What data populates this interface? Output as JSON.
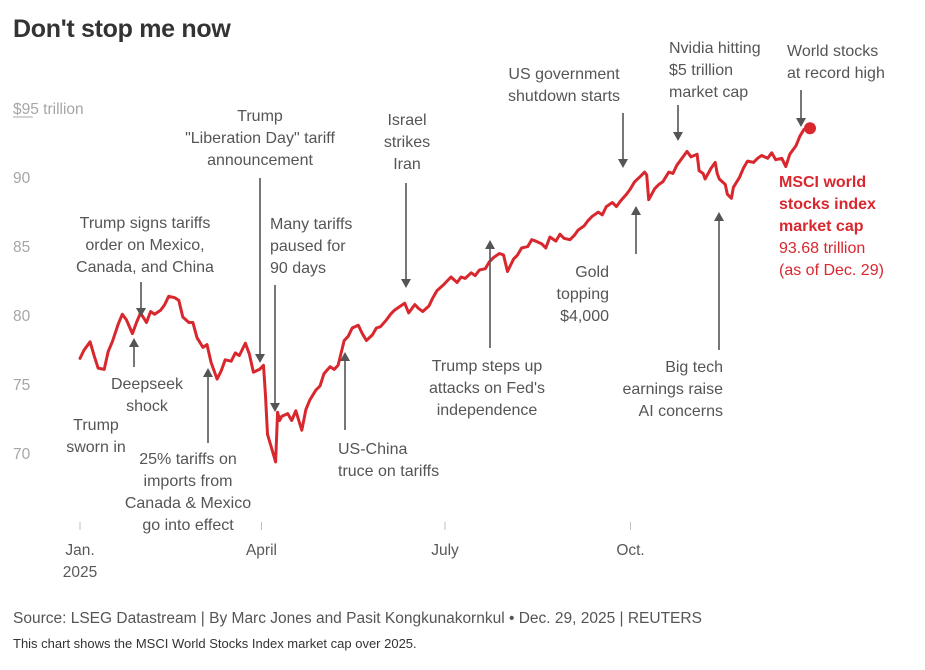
{
  "title": "Don't stop me now",
  "source": "Source: LSEG Datastream | By Marc Jones and Pasit Kongkunakornkul • Dec. 29, 2025 | REUTERS",
  "description": "This chart shows the MSCI World Stocks Index market cap over 2025.",
  "colors": {
    "line": "#d9272e",
    "text": "#555555",
    "axis": "#a6a6a6",
    "arrow": "#555555"
  },
  "chart_data": {
    "type": "line",
    "title": "Don't stop me now",
    "ylim": [
      69,
      96
    ],
    "yticks": [
      {
        "value": 70,
        "label": "70"
      },
      {
        "value": 75,
        "label": "75"
      },
      {
        "value": 80,
        "label": "80"
      },
      {
        "value": 85,
        "label": "85"
      },
      {
        "value": 90,
        "label": "90"
      },
      {
        "value": 95,
        "label": "$95 trillion"
      }
    ],
    "xlim": [
      "2024-12-31",
      "2025-12-31"
    ],
    "xticks": [
      {
        "date": "2025-01-01",
        "lines": [
          "Jan.",
          "2025"
        ]
      },
      {
        "date": "2025-04-01",
        "lines": [
          "April"
        ]
      },
      {
        "date": "2025-07-01",
        "lines": [
          "July"
        ]
      },
      {
        "date": "2025-10-01",
        "lines": [
          "Oct."
        ]
      }
    ],
    "series": [
      {
        "name": "MSCI world stocks index market cap",
        "unit": "trillion USD",
        "points": [
          [
            "2025-01-01",
            77.0
          ],
          [
            "2025-01-03",
            77.6
          ],
          [
            "2025-01-06",
            78.2
          ],
          [
            "2025-01-08",
            77.2
          ],
          [
            "2025-01-10",
            76.3
          ],
          [
            "2025-01-13",
            76.2
          ],
          [
            "2025-01-15",
            77.5
          ],
          [
            "2025-01-17",
            78.2
          ],
          [
            "2025-01-20",
            79.5
          ],
          [
            "2025-01-22",
            80.2
          ],
          [
            "2025-01-24",
            79.8
          ],
          [
            "2025-01-27",
            78.8
          ],
          [
            "2025-01-29",
            79.6
          ],
          [
            "2025-01-31",
            80.3
          ],
          [
            "2025-02-03",
            79.6
          ],
          [
            "2025-02-05",
            80.4
          ],
          [
            "2025-02-07",
            80.2
          ],
          [
            "2025-02-10",
            80.5
          ],
          [
            "2025-02-12",
            80.9
          ],
          [
            "2025-02-14",
            81.5
          ],
          [
            "2025-02-17",
            81.4
          ],
          [
            "2025-02-19",
            81.2
          ],
          [
            "2025-02-21",
            80.0
          ],
          [
            "2025-02-24",
            79.6
          ],
          [
            "2025-02-26",
            79.6
          ],
          [
            "2025-02-28",
            78.5
          ],
          [
            "2025-03-03",
            77.8
          ],
          [
            "2025-03-05",
            78.0
          ],
          [
            "2025-03-07",
            76.7
          ],
          [
            "2025-03-10",
            75.5
          ],
          [
            "2025-03-12",
            76.1
          ],
          [
            "2025-03-14",
            76.9
          ],
          [
            "2025-03-17",
            76.8
          ],
          [
            "2025-03-19",
            77.4
          ],
          [
            "2025-03-21",
            77.2
          ],
          [
            "2025-03-24",
            78.1
          ],
          [
            "2025-03-26",
            77.3
          ],
          [
            "2025-03-28",
            76.0
          ],
          [
            "2025-03-31",
            76.2
          ],
          [
            "2025-04-02",
            76.5
          ],
          [
            "2025-04-03",
            74.3
          ],
          [
            "2025-04-04",
            71.5
          ],
          [
            "2025-04-07",
            70.0
          ],
          [
            "2025-04-08",
            69.5
          ],
          [
            "2025-04-09",
            73.1
          ],
          [
            "2025-04-10",
            72.5
          ],
          [
            "2025-04-11",
            72.8
          ],
          [
            "2025-04-14",
            73.0
          ],
          [
            "2025-04-16",
            72.5
          ],
          [
            "2025-04-18",
            73.2
          ],
          [
            "2025-04-21",
            71.8
          ],
          [
            "2025-04-23",
            73.3
          ],
          [
            "2025-04-25",
            74.0
          ],
          [
            "2025-04-28",
            74.7
          ],
          [
            "2025-04-30",
            75.0
          ],
          [
            "2025-05-02",
            75.9
          ],
          [
            "2025-05-05",
            76.4
          ],
          [
            "2025-05-07",
            76.2
          ],
          [
            "2025-05-09",
            76.5
          ],
          [
            "2025-05-12",
            78.3
          ],
          [
            "2025-05-14",
            78.6
          ],
          [
            "2025-05-16",
            79.2
          ],
          [
            "2025-05-19",
            79.4
          ],
          [
            "2025-05-21",
            78.8
          ],
          [
            "2025-05-23",
            78.3
          ],
          [
            "2025-05-26",
            78.7
          ],
          [
            "2025-05-28",
            79.2
          ],
          [
            "2025-05-30",
            79.3
          ],
          [
            "2025-06-02",
            79.8
          ],
          [
            "2025-06-04",
            80.2
          ],
          [
            "2025-06-06",
            80.5
          ],
          [
            "2025-06-09",
            80.8
          ],
          [
            "2025-06-11",
            81.0
          ],
          [
            "2025-06-13",
            80.3
          ],
          [
            "2025-06-16",
            80.9
          ],
          [
            "2025-06-18",
            80.6
          ],
          [
            "2025-06-20",
            80.4
          ],
          [
            "2025-06-23",
            80.8
          ],
          [
            "2025-06-25",
            81.4
          ],
          [
            "2025-06-27",
            81.9
          ],
          [
            "2025-06-30",
            82.3
          ],
          [
            "2025-07-02",
            82.6
          ],
          [
            "2025-07-04",
            82.9
          ],
          [
            "2025-07-07",
            82.5
          ],
          [
            "2025-07-09",
            82.9
          ],
          [
            "2025-07-11",
            82.8
          ],
          [
            "2025-07-14",
            83.2
          ],
          [
            "2025-07-16",
            83.0
          ],
          [
            "2025-07-18",
            83.4
          ],
          [
            "2025-07-21",
            83.5
          ],
          [
            "2025-07-23",
            84.0
          ],
          [
            "2025-07-25",
            84.3
          ],
          [
            "2025-07-28",
            84.6
          ],
          [
            "2025-07-30",
            84.5
          ],
          [
            "2025-08-01",
            83.3
          ],
          [
            "2025-08-04",
            84.2
          ],
          [
            "2025-08-06",
            84.5
          ],
          [
            "2025-08-08",
            85.0
          ],
          [
            "2025-08-11",
            85.1
          ],
          [
            "2025-08-13",
            85.6
          ],
          [
            "2025-08-15",
            85.5
          ],
          [
            "2025-08-18",
            85.3
          ],
          [
            "2025-08-20",
            85.0
          ],
          [
            "2025-08-22",
            85.8
          ],
          [
            "2025-08-25",
            85.5
          ],
          [
            "2025-08-27",
            86.0
          ],
          [
            "2025-08-29",
            85.7
          ],
          [
            "2025-09-01",
            85.6
          ],
          [
            "2025-09-03",
            85.9
          ],
          [
            "2025-09-05",
            86.3
          ],
          [
            "2025-09-08",
            86.6
          ],
          [
            "2025-09-10",
            87.0
          ],
          [
            "2025-09-12",
            87.3
          ],
          [
            "2025-09-15",
            87.6
          ],
          [
            "2025-09-17",
            87.4
          ],
          [
            "2025-09-19",
            88.0
          ],
          [
            "2025-09-22",
            88.3
          ],
          [
            "2025-09-24",
            88.0
          ],
          [
            "2025-09-26",
            88.4
          ],
          [
            "2025-09-29",
            88.9
          ],
          [
            "2025-10-01",
            89.3
          ],
          [
            "2025-10-03",
            89.8
          ],
          [
            "2025-10-06",
            90.2
          ],
          [
            "2025-10-08",
            90.5
          ],
          [
            "2025-10-09",
            90.3
          ],
          [
            "2025-10-10",
            88.5
          ],
          [
            "2025-10-13",
            89.3
          ],
          [
            "2025-10-15",
            89.6
          ],
          [
            "2025-10-17",
            89.8
          ],
          [
            "2025-10-20",
            90.5
          ],
          [
            "2025-10-22",
            90.4
          ],
          [
            "2025-10-24",
            91.0
          ],
          [
            "2025-10-27",
            91.6
          ],
          [
            "2025-10-29",
            92.0
          ],
          [
            "2025-10-31",
            91.6
          ],
          [
            "2025-11-03",
            91.8
          ],
          [
            "2025-11-04",
            90.6
          ],
          [
            "2025-11-06",
            90.4
          ],
          [
            "2025-11-07",
            90.0
          ],
          [
            "2025-11-10",
            90.8
          ],
          [
            "2025-11-12",
            91.2
          ],
          [
            "2025-11-13",
            90.4
          ],
          [
            "2025-11-14",
            90.0
          ],
          [
            "2025-11-17",
            89.6
          ],
          [
            "2025-11-18",
            88.9
          ],
          [
            "2025-11-20",
            88.6
          ],
          [
            "2025-11-21",
            89.4
          ],
          [
            "2025-11-24",
            90.1
          ],
          [
            "2025-11-26",
            90.8
          ],
          [
            "2025-11-28",
            91.3
          ],
          [
            "2025-12-01",
            91.2
          ],
          [
            "2025-12-03",
            91.5
          ],
          [
            "2025-12-05",
            91.7
          ],
          [
            "2025-12-08",
            91.5
          ],
          [
            "2025-12-10",
            91.9
          ],
          [
            "2025-12-12",
            91.4
          ],
          [
            "2025-12-15",
            91.5
          ],
          [
            "2025-12-17",
            90.9
          ],
          [
            "2025-12-19",
            91.8
          ],
          [
            "2025-12-22",
            92.4
          ],
          [
            "2025-12-24",
            93.1
          ],
          [
            "2025-12-26",
            93.6
          ],
          [
            "2025-12-29",
            93.68
          ]
        ]
      }
    ],
    "end_label": {
      "lines_bold": [
        "MSCI world",
        "stocks index",
        "market cap"
      ],
      "lines": [
        "93.68 trillion",
        "(as of Dec. 29)"
      ]
    },
    "annotations": [
      {
        "id": "trump-sworn-in",
        "date": "2025-01-20",
        "lines": [
          "Trump",
          "sworn in"
        ],
        "arrow": false
      },
      {
        "id": "tariffs-order",
        "date": "2025-02-01",
        "lines": [
          "Trump signs tariffs",
          "order on Mexico,",
          "Canada, and China"
        ],
        "arrow": "down"
      },
      {
        "id": "deepseek-shock",
        "date": "2025-01-27",
        "lines": [
          "Deepseek",
          "shock"
        ],
        "arrow": "up"
      },
      {
        "id": "tariffs-25",
        "date": "2025-03-04",
        "lines": [
          "25% tariffs on",
          "imports from",
          "Canada & Mexico",
          "go into effect"
        ],
        "arrow": "up"
      },
      {
        "id": "liberation-day",
        "date": "2025-04-02",
        "lines": [
          "Trump",
          "\"Liberation Day\" tariff",
          "announcement"
        ],
        "arrow": "down"
      },
      {
        "id": "tariffs-paused",
        "date": "2025-04-09",
        "lines": [
          "Many tariffs",
          "paused for",
          "90 days"
        ],
        "arrow": "down"
      },
      {
        "id": "us-china-truce",
        "date": "2025-05-12",
        "lines": [
          "US-China",
          "truce on tariffs"
        ],
        "arrow": "up"
      },
      {
        "id": "israel-iran",
        "date": "2025-06-13",
        "lines": [
          "Israel",
          "strikes",
          "Iran"
        ],
        "arrow": "down"
      },
      {
        "id": "fed-attacks",
        "date": "2025-07-21",
        "lines": [
          "Trump steps up",
          "attacks on Fed's",
          "independence"
        ],
        "arrow": "up"
      },
      {
        "id": "shutdown",
        "date": "2025-10-01",
        "lines": [
          "US government",
          "shutdown starts"
        ],
        "arrow": "down"
      },
      {
        "id": "gold-4000",
        "date": "2025-10-08",
        "lines": [
          "Gold",
          "topping",
          "$4,000"
        ],
        "arrow": "up"
      },
      {
        "id": "nvidia-5t",
        "date": "2025-10-29",
        "lines": [
          "Nvidia hitting",
          "$5 trillion",
          "market cap"
        ],
        "arrow": "down"
      },
      {
        "id": "ai-concerns",
        "date": "2025-11-20",
        "lines": [
          "Big tech",
          "earnings raise",
          "AI concerns"
        ],
        "arrow": "up"
      },
      {
        "id": "record-high",
        "date": "2025-12-29",
        "lines": [
          "World stocks",
          "at record high"
        ],
        "arrow": "down"
      }
    ]
  }
}
